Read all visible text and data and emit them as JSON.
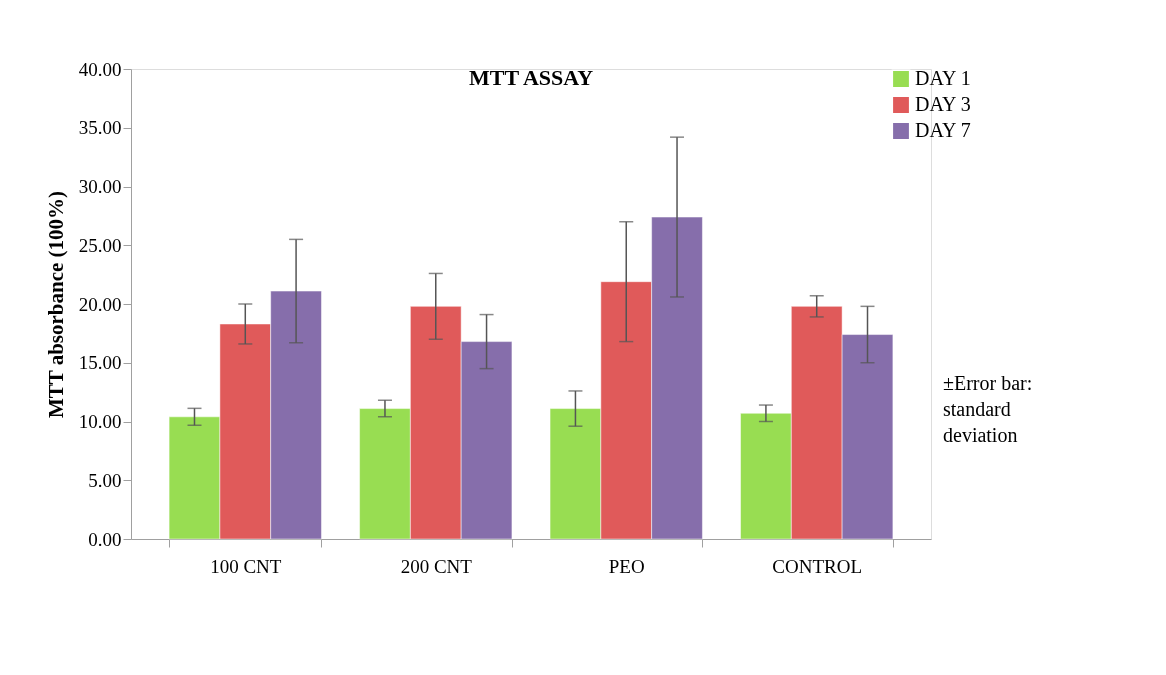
{
  "chart_data": {
    "type": "bar",
    "title": "MTT ASSAY",
    "ylabel": "MTT absorbance (100%)",
    "categories": [
      "100 CNT",
      "200 CNT",
      "PEO",
      "CONTROL"
    ],
    "series": [
      {
        "name": "DAY 1",
        "color": "#98dd52",
        "values": [
          10.4,
          11.1,
          11.1,
          10.7
        ],
        "errors": [
          0.72,
          0.7,
          1.5,
          0.7
        ]
      },
      {
        "name": "DAY 3",
        "color": "#e05a5a",
        "values": [
          18.3,
          19.8,
          21.9,
          19.8
        ],
        "errors": [
          1.7,
          2.8,
          5.1,
          0.9
        ]
      },
      {
        "name": "DAY 7",
        "color": "#866eab",
        "values": [
          21.1,
          16.8,
          27.4,
          17.4
        ],
        "errors": [
          4.4,
          2.3,
          6.8,
          2.4
        ]
      }
    ],
    "ylim": [
      0,
      40
    ],
    "yticks": [
      {
        "value": 0,
        "label": "0.00"
      },
      {
        "value": 5,
        "label": "5.00"
      },
      {
        "value": 10,
        "label": "10.00"
      },
      {
        "value": 15,
        "label": "15.00"
      },
      {
        "value": 20,
        "label": "20.00"
      },
      {
        "value": 25,
        "label": "25.00"
      },
      {
        "value": 30,
        "label": "30.00"
      },
      {
        "value": 35,
        "label": "35.00"
      },
      {
        "value": 40,
        "label": "40.00"
      }
    ],
    "grid": false,
    "legend": "right",
    "annotations": [
      "±Error bar: standard deviation"
    ]
  }
}
